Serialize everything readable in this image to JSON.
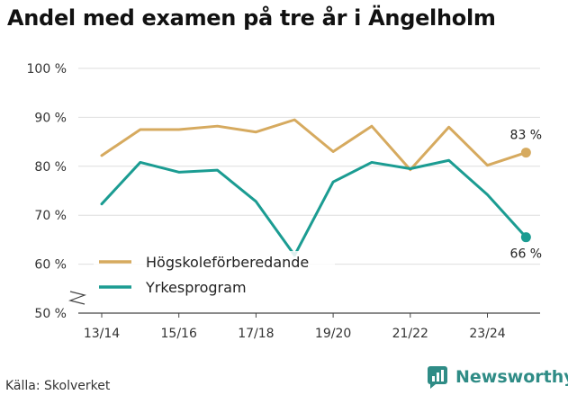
{
  "title": "Andel med examen på tre år i Ängelholm",
  "source": "Källa: Skolverket",
  "brand": "Newsworthy",
  "chart_data": {
    "type": "line",
    "ylim": [
      50,
      100
    ],
    "yticks": [
      50,
      60,
      70,
      80,
      90,
      100
    ],
    "ytick_labels": [
      "50 %",
      "60 %",
      "70 %",
      "80 %",
      "90 %",
      "100 %"
    ],
    "years": [
      "13/14",
      "14/15",
      "15/16",
      "16/17",
      "17/18",
      "18/19",
      "19/20",
      "20/21",
      "21/22",
      "22/23",
      "23/24",
      "24/25"
    ],
    "xtick_labels": [
      "13/14",
      "15/16",
      "17/18",
      "19/20",
      "21/22",
      "23/24"
    ],
    "series": [
      {
        "name": "Högskoleförberedande",
        "color": "#d6aa5f",
        "values": [
          82.2,
          87.5,
          87.5,
          88.2,
          87.0,
          89.5,
          83.0,
          88.2,
          79.3,
          88.0,
          80.2,
          82.8
        ],
        "end_label": "83 %"
      },
      {
        "name": "Yrkesprogram",
        "color": "#1b9c92",
        "values": [
          72.3,
          80.8,
          78.8,
          79.2,
          72.8,
          61.8,
          76.8,
          80.8,
          79.5,
          81.2,
          74.2,
          65.5
        ],
        "end_label": "66 %"
      }
    ]
  }
}
